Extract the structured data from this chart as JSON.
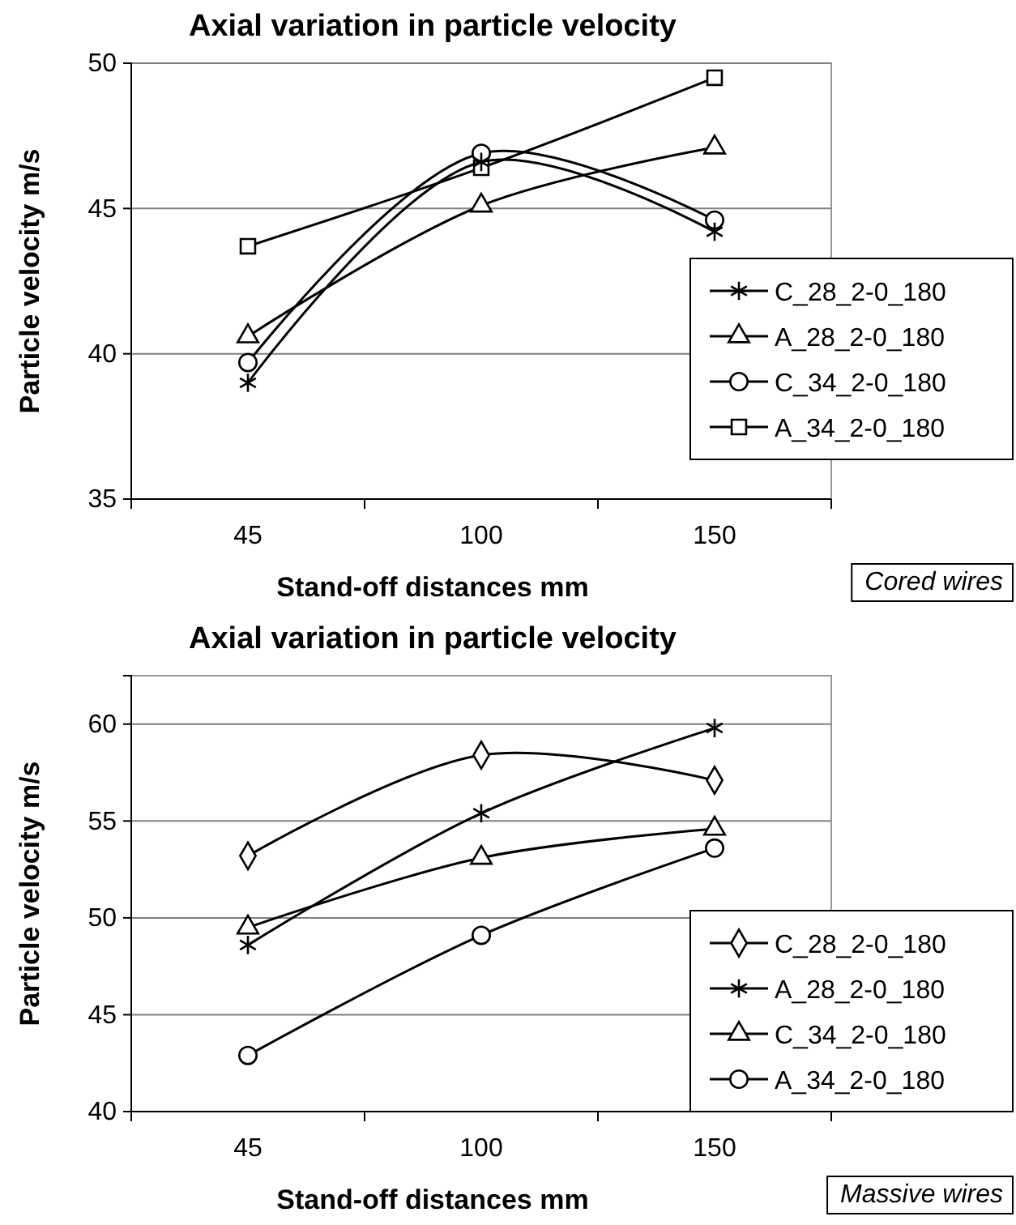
{
  "chart_data": [
    {
      "type": "line",
      "title": "Axial variation in particle velocity",
      "xlabel": "Stand-off distances mm",
      "ylabel": "Particle velocity m/s",
      "categories": [
        "45",
        "100",
        "150"
      ],
      "ylim": [
        35,
        50
      ],
      "yticks": [
        35,
        40,
        45,
        50
      ],
      "grid": "y",
      "legend": "right",
      "annotations": [
        "Cored wires"
      ],
      "series": [
        {
          "name": "C_28_2-0_180",
          "color": "#000000",
          "marker": "cross",
          "values": [
            39.0,
            46.6,
            44.2
          ]
        },
        {
          "name": "A_28_2-0_180",
          "color": "#000000",
          "marker": "triangle",
          "values": [
            40.6,
            45.1,
            47.1
          ]
        },
        {
          "name": "C_34_2-0_180",
          "color": "#000000",
          "marker": "circle",
          "values": [
            39.7,
            46.9,
            44.6
          ]
        },
        {
          "name": "A_34_2-0_180",
          "color": "#000000",
          "marker": "square",
          "values": [
            43.7,
            46.4,
            49.5
          ]
        }
      ]
    },
    {
      "type": "line",
      "title": "Axial variation in particle velocity",
      "xlabel": "Stand-off distances mm",
      "ylabel": "Particle velocity m/s",
      "categories": [
        "45",
        "100",
        "150"
      ],
      "ylim": [
        40,
        62.5
      ],
      "yticks": [
        40,
        45,
        50,
        55,
        60
      ],
      "grid": "y",
      "legend": "bottom right",
      "annotations": [
        "Massive wires"
      ],
      "series": [
        {
          "name": "C_28_2-0_180",
          "color": "#000000",
          "marker": "diamond",
          "values": [
            53.2,
            58.4,
            57.1
          ]
        },
        {
          "name": "A_28_2-0_180",
          "color": "#000000",
          "marker": "cross",
          "values": [
            48.6,
            55.4,
            59.8
          ]
        },
        {
          "name": "C_34_2-0_180",
          "color": "#000000",
          "marker": "triangle",
          "values": [
            49.5,
            53.1,
            54.6
          ]
        },
        {
          "name": "A_34_2-0_180",
          "color": "#000000",
          "marker": "circle",
          "values": [
            42.9,
            49.1,
            53.6
          ]
        }
      ]
    }
  ]
}
